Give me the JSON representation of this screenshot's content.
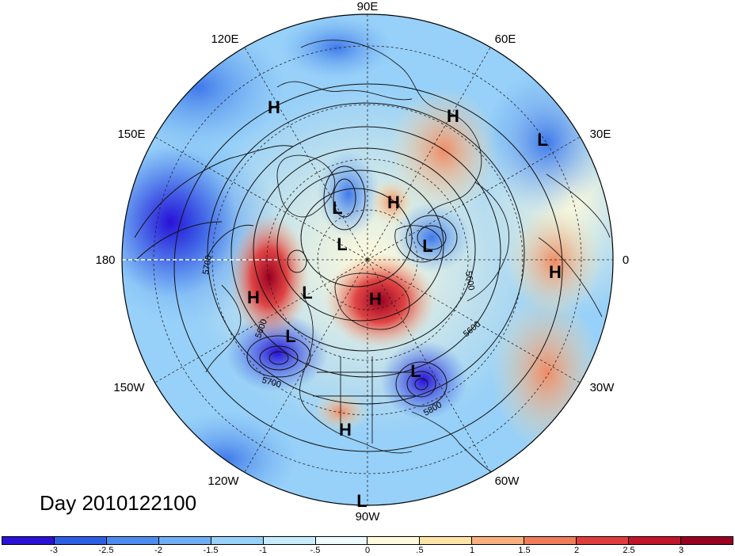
{
  "map": {
    "projection": "north polar stereographic",
    "date_label": "Day 2010122100",
    "longitude_labels": [
      "90E",
      "60E",
      "30E",
      "0",
      "30W",
      "60W",
      "90W",
      "120W",
      "150W",
      "180",
      "150E",
      "120E"
    ],
    "pressure_centers": [
      {
        "type": "H"
      },
      {
        "type": "H"
      },
      {
        "type": "L"
      },
      {
        "type": "L"
      },
      {
        "type": "H"
      },
      {
        "type": "L"
      },
      {
        "type": "L"
      },
      {
        "type": "H"
      },
      {
        "type": "H"
      },
      {
        "type": "L"
      },
      {
        "type": "H"
      },
      {
        "type": "L"
      },
      {
        "type": "L"
      },
      {
        "type": "H"
      },
      {
        "type": "L"
      }
    ],
    "contour_labels": [
      "5700",
      "5600",
      "5600",
      "5700",
      "5600",
      "5800"
    ],
    "colorbar": {
      "ticks": [
        "-3",
        "-2.5",
        "-2",
        "-1.5",
        "-1",
        "-.5",
        "0",
        ".5",
        "1",
        "1.5",
        "2",
        "2.5",
        "3"
      ],
      "colors": [
        "#2a10d8",
        "#2d5fe6",
        "#4c8cf0",
        "#6eaef4",
        "#97d0f8",
        "#c8ecfc",
        "#eefbff",
        "#fffadc",
        "#fde3a6",
        "#f9b07e",
        "#f07c5c",
        "#e03c3c",
        "#c2152a",
        "#9a0020"
      ]
    }
  }
}
